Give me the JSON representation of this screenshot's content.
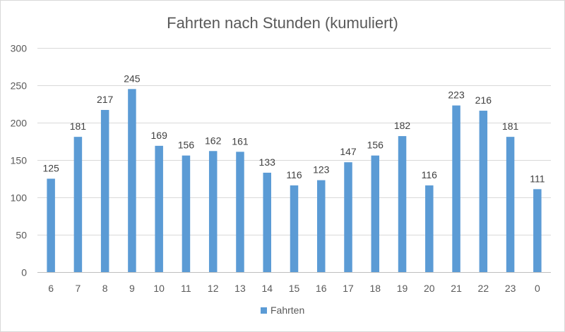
{
  "chart_data": {
    "type": "bar",
    "title": "Fahrten nach Stunden (kumuliert)",
    "xlabel": "",
    "ylabel": "",
    "categories": [
      "6",
      "7",
      "8",
      "9",
      "10",
      "11",
      "12",
      "13",
      "14",
      "15",
      "16",
      "17",
      "18",
      "19",
      "20",
      "21",
      "22",
      "23",
      "0"
    ],
    "series": [
      {
        "name": "Fahrten",
        "color": "#5b9bd5",
        "values": [
          125,
          181,
          217,
          245,
          169,
          156,
          162,
          161,
          133,
          116,
          123,
          147,
          156,
          182,
          116,
          223,
          216,
          181,
          111
        ]
      }
    ],
    "ylim": [
      0,
      300
    ],
    "yticks": [
      0,
      50,
      100,
      150,
      200,
      250,
      300
    ],
    "grid": true,
    "legend": "bottom",
    "gridColor": "#d9d9d9",
    "axisColor": "#bfbfbf"
  }
}
